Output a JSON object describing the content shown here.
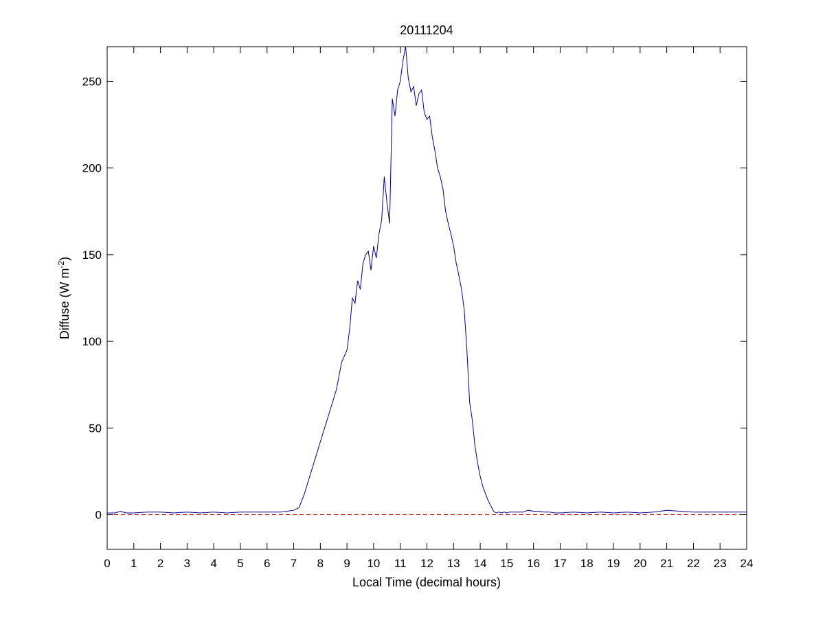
{
  "chart_data": {
    "type": "line",
    "title": "20111204",
    "xlabel": "Local Time (decimal hours)",
    "ylabel": {
      "prefix": "Diffuse (W m",
      "superscript": "-2",
      "suffix": ")"
    },
    "xlim": [
      0,
      24
    ],
    "ylim": [
      -20,
      270
    ],
    "xticks": [
      0,
      1,
      2,
      3,
      4,
      5,
      6,
      7,
      8,
      9,
      10,
      11,
      12,
      13,
      14,
      15,
      16,
      17,
      18,
      19,
      20,
      21,
      22,
      23,
      24
    ],
    "yticks": [
      0,
      50,
      100,
      150,
      200,
      250
    ],
    "grid": false,
    "legend": "none",
    "series": [
      {
        "color": "#00008b",
        "style": "solid",
        "x": [
          0.0,
          0.3,
          0.5,
          0.7,
          1.0,
          1.5,
          2.0,
          2.5,
          3.0,
          3.5,
          4.0,
          4.5,
          5.0,
          5.5,
          6.0,
          6.5,
          7.0,
          7.2,
          7.4,
          7.6,
          7.8,
          8.0,
          8.2,
          8.4,
          8.6,
          8.8,
          9.0,
          9.1,
          9.2,
          9.3,
          9.4,
          9.5,
          9.6,
          9.7,
          9.8,
          9.9,
          10.0,
          10.1,
          10.2,
          10.3,
          10.4,
          10.5,
          10.6,
          10.7,
          10.8,
          10.9,
          11.0,
          11.1,
          11.2,
          11.3,
          11.4,
          11.5,
          11.6,
          11.7,
          11.8,
          11.9,
          12.0,
          12.1,
          12.2,
          12.3,
          12.4,
          12.5,
          12.6,
          12.7,
          12.8,
          12.9,
          13.0,
          13.1,
          13.2,
          13.3,
          13.4,
          13.5,
          13.6,
          13.7,
          13.8,
          13.9,
          14.0,
          14.1,
          14.2,
          14.3,
          14.4,
          14.5,
          14.6,
          14.7,
          14.8,
          14.9,
          15.0,
          15.1,
          15.2,
          15.3,
          15.4,
          15.6,
          15.8,
          16.0,
          16.2,
          16.4,
          16.6,
          16.8,
          17.0,
          17.5,
          18.0,
          18.5,
          19.0,
          19.5,
          20.0,
          20.5,
          21.0,
          21.5,
          22.0,
          22.5,
          23.0,
          23.5,
          24.0
        ],
        "y": [
          1.0,
          1.0,
          2.0,
          1.0,
          1.0,
          1.5,
          1.5,
          1.0,
          1.5,
          1.0,
          1.5,
          1.0,
          1.5,
          1.5,
          1.5,
          1.5,
          2.5,
          4.0,
          12.0,
          22.0,
          32.0,
          42.0,
          52.0,
          62.0,
          72.0,
          88.0,
          95.0,
          107.0,
          125.0,
          122.0,
          135.0,
          130.0,
          145.0,
          150.0,
          152.0,
          141.0,
          155.0,
          148.0,
          162.0,
          170.0,
          195.0,
          180.0,
          168.0,
          240.0,
          230.0,
          245.0,
          250.0,
          262.0,
          270.0,
          252.0,
          244.0,
          247.0,
          236.0,
          243.0,
          245.0,
          232.0,
          228.0,
          230.0,
          218.0,
          210.0,
          200.0,
          195.0,
          188.0,
          175.0,
          168.0,
          162.0,
          155.0,
          145.0,
          138.0,
          130.0,
          118.0,
          95.0,
          65.0,
          55.0,
          40.0,
          30.0,
          22.0,
          16.0,
          12.0,
          8.0,
          5.0,
          2.0,
          1.0,
          1.5,
          1.0,
          1.5,
          1.0,
          1.5,
          1.5,
          1.5,
          1.5,
          1.5,
          2.5,
          2.0,
          2.0,
          1.5,
          1.5,
          1.0,
          1.0,
          1.5,
          1.0,
          1.5,
          1.0,
          1.5,
          1.0,
          1.5,
          2.5,
          2.0,
          1.5,
          1.5,
          1.5,
          1.5,
          1.5
        ]
      },
      {
        "color": "#cc0000",
        "style": "dashed",
        "x": [
          0,
          24
        ],
        "y": [
          0,
          0
        ]
      }
    ]
  }
}
